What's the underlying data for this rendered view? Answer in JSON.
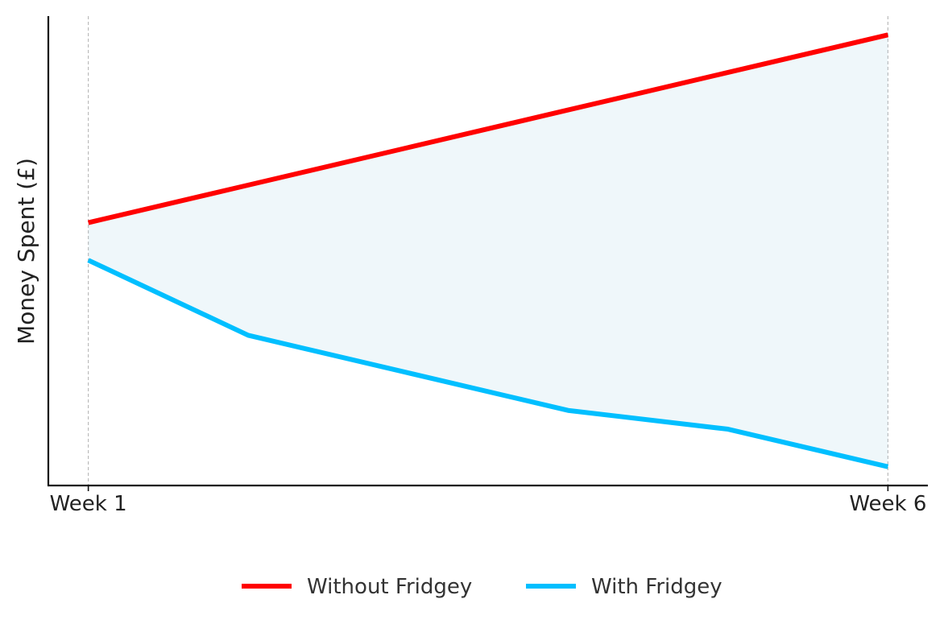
{
  "chart_data": {
    "type": "line",
    "title": "",
    "xlabel": "",
    "ylabel": "Money Spent (£)",
    "x": [
      1,
      2,
      3,
      4,
      5,
      6
    ],
    "xticks": [
      {
        "x": 1,
        "label": "Week 1"
      },
      {
        "x": 6,
        "label": "Week 6"
      }
    ],
    "xlim": [
      0.75,
      6.25
    ],
    "ylim": [
      0,
      100
    ],
    "y_ticks_shown": false,
    "grid": "vertical dashed lines at Week 1 and Week 6",
    "fill_between_series": true,
    "legend_position": "bottom-center",
    "series": [
      {
        "name": "Without Fridgey",
        "color": "#ff0000",
        "values": [
          56,
          64,
          72,
          80,
          88,
          96
        ]
      },
      {
        "name": "With Fridgey",
        "color": "#00bfff",
        "values": [
          48,
          32,
          24,
          16,
          12,
          4
        ]
      }
    ],
    "fill_color": "#add8e6"
  }
}
